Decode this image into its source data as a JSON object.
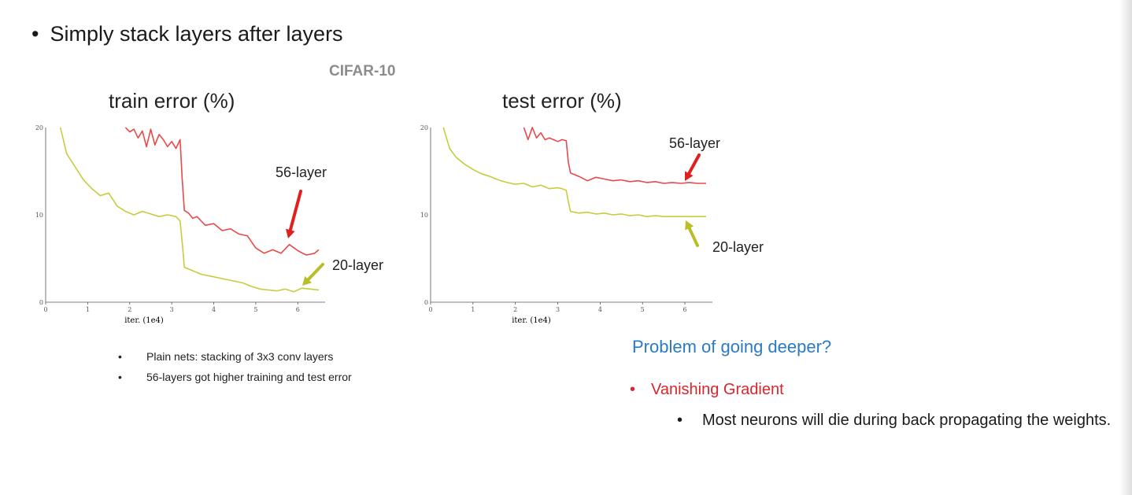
{
  "slide": {
    "bullet_mark": "•",
    "heading": "Simply stack layers after layers",
    "dataset_label": "CIFAR-10",
    "notes": [
      "Plain nets: stacking of 3x3 conv layers",
      "56-layers got higher training and test error"
    ],
    "problem": "Problem of going deeper?",
    "vanishing": "Vanishing Gradient",
    "neurons": "Most neurons will die during back propagating the weights."
  },
  "colors": {
    "layer56": "#e8494a",
    "layer20": "#c7cc3c",
    "arrow56": "#e0201e",
    "arrow20": "#b9be2b",
    "problem": "#2a7ac4",
    "vanishing": "#d8262c"
  },
  "chart_data": [
    {
      "type": "line",
      "title": "train error (%)",
      "xlabel": "iter. (1e4)",
      "ylabel": "",
      "xlim": [
        0,
        6.5
      ],
      "ylim": [
        0,
        20
      ],
      "xticks": [
        "0",
        "1",
        "2",
        "3",
        "4",
        "5",
        "6"
      ],
      "yticks": [
        "0",
        "10",
        "20"
      ],
      "series": [
        {
          "name": "56-layer",
          "color": "#e8494a",
          "x": [
            1.9,
            2.0,
            2.1,
            2.2,
            2.3,
            2.4,
            2.5,
            2.6,
            2.7,
            2.8,
            2.9,
            3.0,
            3.1,
            3.2,
            3.25,
            3.3,
            3.4,
            3.5,
            3.6,
            3.8,
            4.0,
            4.2,
            4.4,
            4.6,
            4.8,
            5.0,
            5.2,
            5.4,
            5.6,
            5.8,
            6.0,
            6.2,
            6.4,
            6.5
          ],
          "y": [
            20.0,
            19.5,
            19.8,
            18.8,
            19.6,
            17.8,
            19.8,
            18.0,
            19.2,
            18.6,
            17.8,
            18.4,
            17.6,
            18.6,
            14.0,
            10.5,
            10.2,
            9.6,
            9.8,
            8.8,
            9.0,
            8.2,
            8.4,
            7.8,
            7.6,
            6.2,
            5.6,
            6.0,
            5.6,
            6.6,
            5.9,
            5.4,
            5.6,
            6.0
          ]
        },
        {
          "name": "20-layer",
          "color": "#c7cc3c",
          "x": [
            0.35,
            0.5,
            0.7,
            0.9,
            1.1,
            1.3,
            1.5,
            1.7,
            1.9,
            2.1,
            2.3,
            2.5,
            2.7,
            2.9,
            3.1,
            3.2,
            3.25,
            3.3,
            3.5,
            3.7,
            3.9,
            4.1,
            4.3,
            4.5,
            4.7,
            4.9,
            5.1,
            5.3,
            5.5,
            5.7,
            5.9,
            6.1,
            6.3,
            6.5
          ],
          "y": [
            20.0,
            17.0,
            15.5,
            14.0,
            13.0,
            12.2,
            12.5,
            11.0,
            10.4,
            10.0,
            10.4,
            10.1,
            9.8,
            10.0,
            9.8,
            9.3,
            6.8,
            4.0,
            3.6,
            3.2,
            3.0,
            2.8,
            2.6,
            2.4,
            2.2,
            1.8,
            1.5,
            1.4,
            1.3,
            1.5,
            1.2,
            1.6,
            1.5,
            1.4
          ]
        }
      ],
      "annotations": [
        {
          "text": "56-layer",
          "series": "56-layer"
        },
        {
          "text": "20-layer",
          "series": "20-layer"
        }
      ]
    },
    {
      "type": "line",
      "title": "test error (%)",
      "xlabel": "iter. (1e4)",
      "ylabel": "",
      "xlim": [
        0,
        6.5
      ],
      "ylim": [
        0,
        20
      ],
      "xticks": [
        "0",
        "1",
        "2",
        "3",
        "4",
        "5",
        "6"
      ],
      "yticks": [
        "0",
        "10",
        "20"
      ],
      "series": [
        {
          "name": "56-layer",
          "color": "#e8494a",
          "x": [
            2.2,
            2.3,
            2.4,
            2.5,
            2.6,
            2.7,
            2.8,
            2.9,
            3.0,
            3.1,
            3.2,
            3.25,
            3.3,
            3.5,
            3.7,
            3.9,
            4.1,
            4.3,
            4.5,
            4.7,
            4.9,
            5.1,
            5.3,
            5.5,
            5.7,
            5.9,
            6.1,
            6.3,
            6.5
          ],
          "y": [
            20.0,
            18.6,
            20.0,
            18.8,
            19.4,
            18.6,
            18.8,
            18.6,
            18.4,
            18.6,
            18.5,
            16.0,
            14.8,
            14.4,
            13.9,
            14.3,
            14.1,
            13.9,
            14.0,
            13.8,
            13.9,
            13.7,
            13.8,
            13.6,
            13.7,
            13.6,
            13.7,
            13.6,
            13.6
          ]
        },
        {
          "name": "20-layer",
          "color": "#c7cc3c",
          "x": [
            0.3,
            0.45,
            0.6,
            0.8,
            1.0,
            1.2,
            1.4,
            1.6,
            1.8,
            2.0,
            2.2,
            2.4,
            2.6,
            2.8,
            3.0,
            3.1,
            3.2,
            3.25,
            3.3,
            3.5,
            3.7,
            3.9,
            4.1,
            4.3,
            4.5,
            4.7,
            4.9,
            5.1,
            5.3,
            5.5,
            5.7,
            5.9,
            6.1,
            6.3,
            6.5
          ],
          "y": [
            20.0,
            17.6,
            16.6,
            15.8,
            15.2,
            14.7,
            14.4,
            14.0,
            13.7,
            13.5,
            13.6,
            13.2,
            13.4,
            13.0,
            13.1,
            13.0,
            12.8,
            11.5,
            10.4,
            10.2,
            10.3,
            10.1,
            10.2,
            10.0,
            10.1,
            9.9,
            10.0,
            9.8,
            9.9,
            9.8,
            9.8,
            9.8,
            9.8,
            9.8,
            9.8
          ]
        }
      ],
      "annotations": [
        {
          "text": "56-layer",
          "series": "56-layer"
        },
        {
          "text": "20-layer",
          "series": "20-layer"
        }
      ]
    }
  ]
}
